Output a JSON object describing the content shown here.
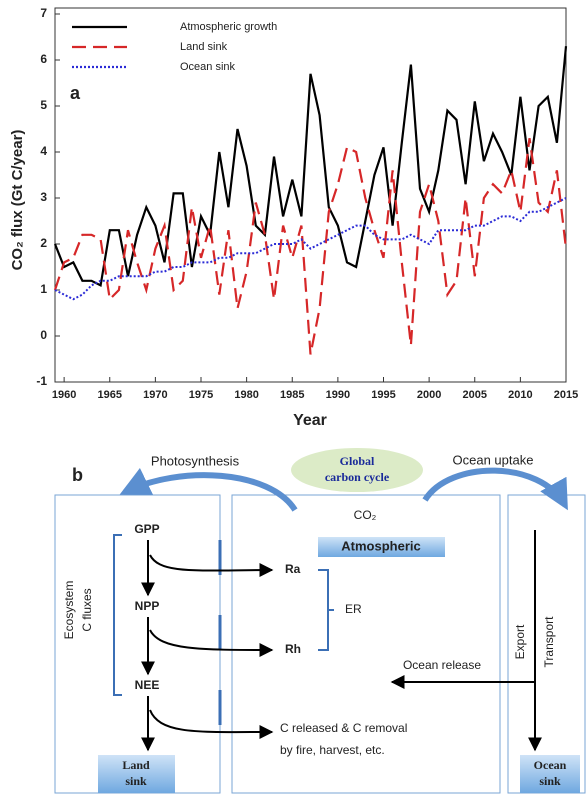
{
  "chart_data": {
    "type": "line",
    "panel_label": "a",
    "x_label": "Year",
    "y_label": "CO₂ flux (Gt C/year)",
    "x": [
      1959,
      1960,
      1961,
      1962,
      1963,
      1964,
      1965,
      1966,
      1967,
      1968,
      1969,
      1970,
      1971,
      1972,
      1973,
      1974,
      1975,
      1976,
      1977,
      1978,
      1979,
      1980,
      1981,
      1982,
      1983,
      1984,
      1985,
      1986,
      1987,
      1988,
      1989,
      1990,
      1991,
      1992,
      1993,
      1994,
      1995,
      1996,
      1997,
      1998,
      1999,
      2000,
      2001,
      2002,
      2003,
      2004,
      2005,
      2006,
      2007,
      2008,
      2009,
      2010,
      2011,
      2012,
      2013,
      2014,
      2015
    ],
    "series": [
      {
        "name": "Atmospheric growth",
        "color": "#000000",
        "linestyle": "solid",
        "values": [
          2.0,
          1.5,
          1.6,
          1.2,
          1.2,
          1.1,
          2.3,
          2.3,
          1.3,
          2.2,
          2.8,
          2.4,
          1.6,
          3.1,
          3.1,
          1.5,
          2.6,
          2.2,
          4.0,
          2.8,
          4.5,
          3.7,
          2.4,
          2.2,
          3.9,
          2.6,
          3.4,
          2.6,
          5.7,
          4.8,
          2.8,
          2.4,
          1.6,
          1.5,
          2.5,
          3.5,
          4.1,
          2.4,
          4.2,
          5.9,
          3.2,
          2.7,
          3.6,
          4.9,
          4.7,
          3.3,
          5.1,
          3.8,
          4.4,
          4.0,
          3.5,
          5.2,
          3.6,
          5.0,
          5.2,
          4.2,
          6.3
        ]
      },
      {
        "name": "Land sink",
        "color": "#d62728",
        "linestyle": "dashed",
        "values": [
          1.0,
          1.6,
          1.7,
          2.2,
          2.2,
          2.1,
          0.8,
          1.0,
          2.3,
          1.6,
          1.0,
          1.9,
          2.4,
          1.0,
          1.2,
          2.8,
          1.7,
          2.4,
          0.9,
          2.3,
          0.6,
          1.4,
          2.9,
          2.2,
          0.8,
          2.4,
          1.7,
          2.4,
          -0.4,
          0.6,
          2.7,
          3.3,
          4.1,
          4.0,
          3.0,
          2.3,
          1.7,
          3.6,
          1.6,
          -0.2,
          2.7,
          3.3,
          2.5,
          0.9,
          1.2,
          3.0,
          1.3,
          3.0,
          3.3,
          3.1,
          3.6,
          2.7,
          4.3,
          2.9,
          2.7,
          3.6,
          1.9
        ]
      },
      {
        "name": "Ocean sink",
        "color": "#2b2bd6",
        "linestyle": "dotted",
        "values": [
          1.0,
          0.9,
          0.8,
          0.9,
          1.1,
          1.2,
          1.2,
          1.3,
          1.3,
          1.3,
          1.3,
          1.4,
          1.4,
          1.5,
          1.5,
          1.6,
          1.6,
          1.6,
          1.7,
          1.7,
          1.8,
          1.8,
          1.8,
          1.9,
          2.0,
          2.0,
          2.0,
          2.1,
          1.9,
          2.0,
          2.1,
          2.2,
          2.3,
          2.4,
          2.4,
          2.2,
          2.1,
          2.1,
          2.1,
          2.2,
          2.1,
          2.0,
          2.3,
          2.3,
          2.3,
          2.3,
          2.4,
          2.4,
          2.5,
          2.6,
          2.6,
          2.5,
          2.7,
          2.7,
          2.8,
          2.9,
          3.0
        ]
      }
    ],
    "xlim": [
      1959,
      2015
    ],
    "xticks": [
      1960,
      1965,
      1970,
      1975,
      1980,
      1985,
      1990,
      1995,
      2000,
      2005,
      2010,
      2015
    ],
    "ylim": [
      -1,
      7
    ],
    "yticks": [
      -1,
      0,
      1,
      2,
      3,
      4,
      5,
      6,
      7
    ],
    "legend": "upper-left"
  },
  "diagram": {
    "panel_label": "b",
    "photosynthesis": "Photosynthesis",
    "global_cycle": [
      "Global",
      "carbon cycle"
    ],
    "ocean_uptake": "Ocean uptake",
    "co2": "CO₂",
    "atmospheric": "Atmospheric",
    "gpp": "GPP",
    "npp": "NPP",
    "nee": "NEE",
    "ra": "Ra",
    "rh": "Rh",
    "er": "ER",
    "ecosystem": [
      "Ecosystem",
      "C fluxes"
    ],
    "ocean_release": "Ocean release",
    "export": "Export",
    "transport": "Transport",
    "released": [
      "C released & C removal",
      "by fire, harvest, etc."
    ],
    "land_sink": [
      "Land",
      "sink"
    ],
    "ocean_sink": [
      "Ocean",
      "sink"
    ]
  }
}
